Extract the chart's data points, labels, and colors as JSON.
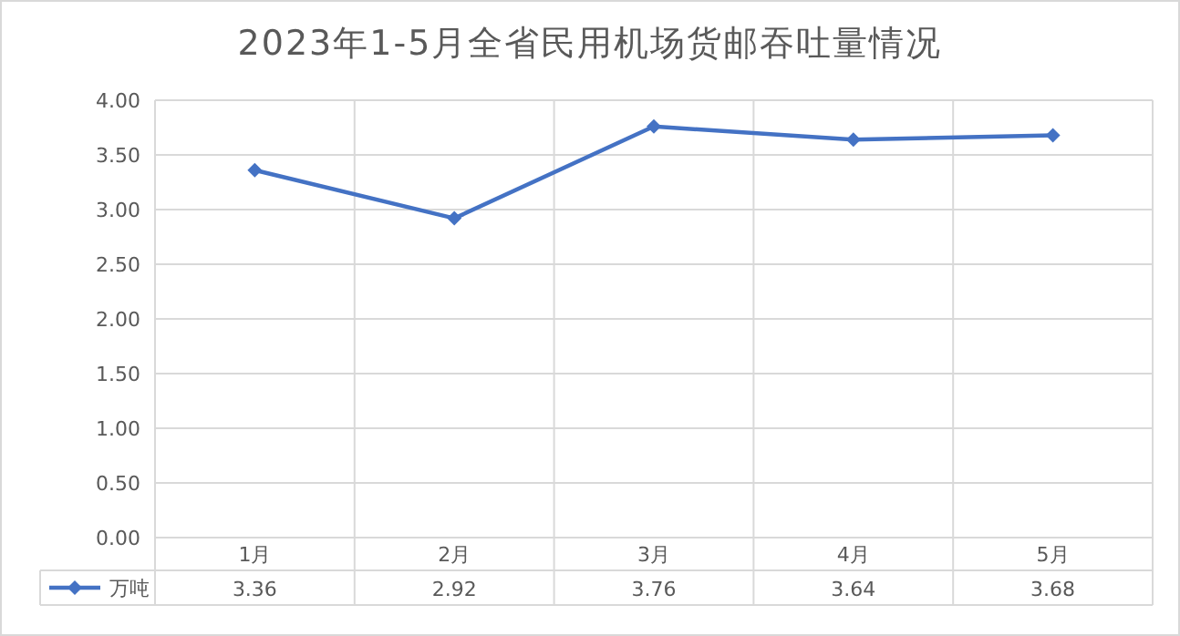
{
  "chart_data": {
    "type": "line",
    "title": "2023年1-5月全省民用机场货邮吞吐量情况",
    "categories": [
      "1月",
      "2月",
      "3月",
      "4月",
      "5月"
    ],
    "series": [
      {
        "name": "万吨",
        "color": "#4472c4",
        "values": [
          3.36,
          2.92,
          3.76,
          3.64,
          3.68
        ]
      }
    ],
    "ylim": [
      0,
      4
    ],
    "yticks": [
      {
        "value": 0,
        "label": "0.00"
      },
      {
        "value": 0.5,
        "label": "0.50"
      },
      {
        "value": 1,
        "label": "1.00"
      },
      {
        "value": 1.5,
        "label": "1.50"
      },
      {
        "value": 2,
        "label": "2.00"
      },
      {
        "value": 2.5,
        "label": "2.50"
      },
      {
        "value": 3,
        "label": "3.00"
      },
      {
        "value": 3.5,
        "label": "3.50"
      },
      {
        "value": 4,
        "label": "4.00"
      }
    ],
    "grid": true,
    "legend": "bottom",
    "marker": "diamond",
    "data_labels": true
  }
}
